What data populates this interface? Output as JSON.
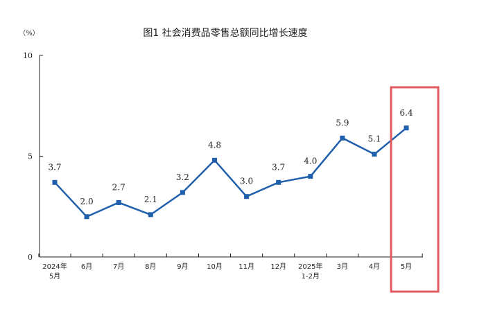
{
  "chart_data": {
    "type": "line",
    "title": "图1  社会消费品零售总额同比增长速度",
    "ylabel": "（%）",
    "xlabel": "",
    "ylim": [
      0,
      10
    ],
    "yticks": [
      "0",
      "5",
      "10"
    ],
    "categories": [
      [
        "2024年",
        "5月"
      ],
      [
        "6月"
      ],
      [
        "7月"
      ],
      [
        "8月"
      ],
      [
        "9月"
      ],
      [
        "10月"
      ],
      [
        "11月"
      ],
      [
        "12月"
      ],
      [
        "2025年",
        "1-2月"
      ],
      [
        "3月"
      ],
      [
        "4月"
      ],
      [
        "5月"
      ]
    ],
    "series": [
      {
        "values": [
          3.7,
          2.0,
          2.7,
          2.1,
          3.2,
          4.8,
          3.0,
          3.7,
          4.0,
          5.9,
          5.1,
          6.4
        ],
        "labels": [
          "3.7",
          "2.0",
          "2.7",
          "2.1",
          "3.2",
          "4.8",
          "3.0",
          "3.7",
          "4.0",
          "5.9",
          "5.1",
          "6.4"
        ]
      }
    ],
    "grid": false,
    "legend": "none",
    "highlight_index": 11,
    "colors": {
      "line": "#1f5fab",
      "highlight": "#e05a60",
      "axis": "#222222"
    }
  }
}
